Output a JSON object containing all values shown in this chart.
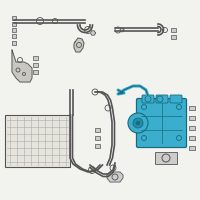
{
  "bg_color": "#f2f2ee",
  "highlight_color": "#3aaecc",
  "line_color": "#888888",
  "dark_color": "#555555",
  "compressor_edge": "#1a6a80",
  "fig_size": [
    2.0,
    2.0
  ],
  "dpi": 100
}
